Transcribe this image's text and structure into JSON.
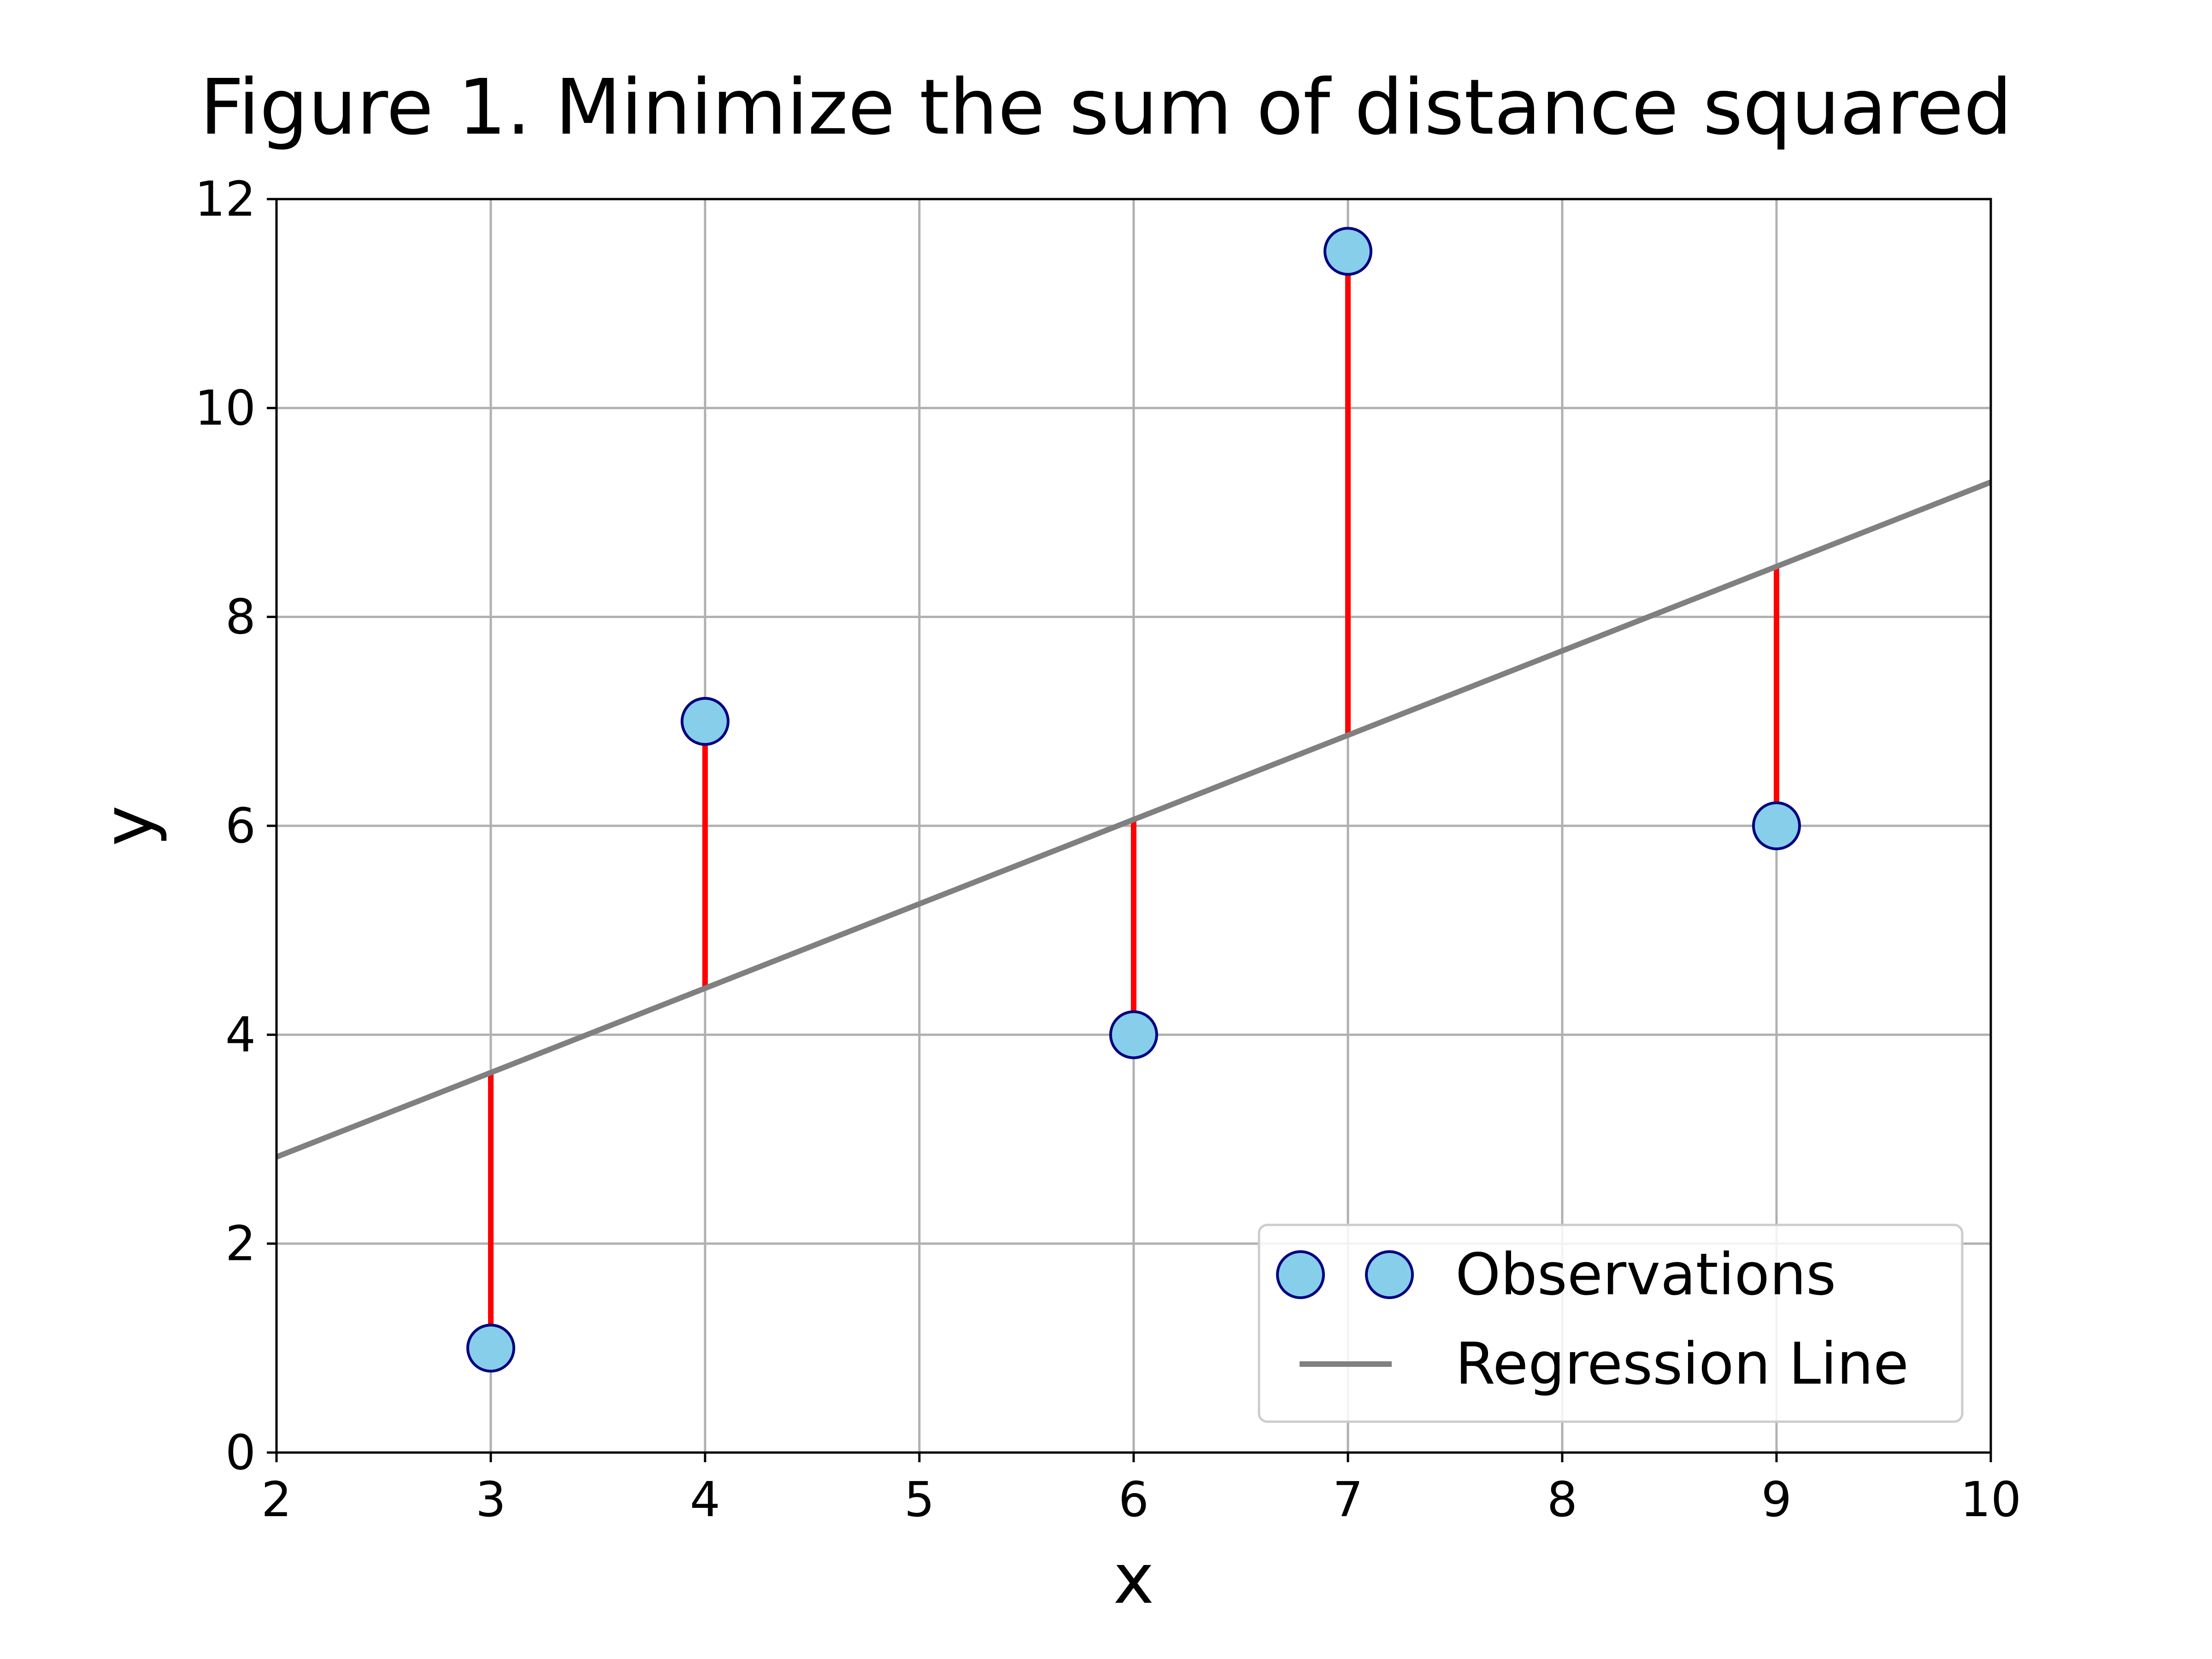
{
  "chart_data": {
    "type": "scatter",
    "title": "Figure 1. Minimize the sum of distance squared",
    "xlabel": "x",
    "ylabel": "y",
    "xlim": [
      2,
      10
    ],
    "ylim": [
      0,
      12
    ],
    "x_ticks": [
      2,
      3,
      4,
      5,
      6,
      7,
      8,
      9,
      10
    ],
    "y_ticks": [
      0,
      2,
      4,
      6,
      8,
      10,
      12
    ],
    "grid": true,
    "legend_position": "lower-right",
    "series": [
      {
        "name": "Observations",
        "kind": "scatter",
        "x": [
          3,
          4,
          6,
          7,
          9
        ],
        "y": [
          1,
          7,
          4,
          11.5,
          6
        ],
        "color": "#87ceeb",
        "edge_color": "#000080"
      },
      {
        "name": "Regression Line",
        "kind": "line",
        "x": [
          2,
          10
        ],
        "y": [
          2.83,
          9.29
        ],
        "color": "#808080"
      }
    ],
    "residuals": {
      "color": "#ff0000",
      "from_y": [
        3.65,
        4.45,
        6.07,
        6.88,
        8.49
      ]
    }
  }
}
